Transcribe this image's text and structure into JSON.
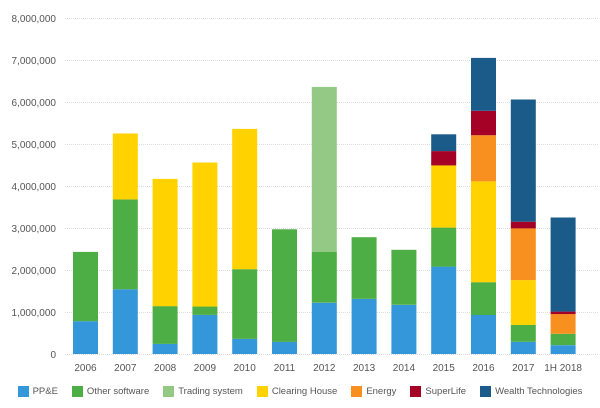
{
  "chart_data": {
    "type": "bar",
    "stacked": true,
    "title": "",
    "xlabel": "",
    "ylabel": "",
    "ylim": [
      0,
      8000000
    ],
    "yticks": [
      "0",
      "1,000,000",
      "2,000,000",
      "3,000,000",
      "4,000,000",
      "5,000,000",
      "6,000,000",
      "7,000,000",
      "8,000,000"
    ],
    "ytick_values": [
      0,
      1000000,
      2000000,
      3000000,
      4000000,
      5000000,
      6000000,
      7000000,
      8000000
    ],
    "grid": true,
    "legend_position": "bottom",
    "categories": [
      "2006",
      "2007",
      "2008",
      "2009",
      "2010",
      "2011",
      "2012",
      "2013",
      "2014",
      "2015",
      "2016",
      "2017",
      "1H 2018"
    ],
    "series": [
      {
        "name": "PP&E",
        "color": "#3497d9",
        "values": [
          780000,
          1540000,
          240000,
          930000,
          360000,
          290000,
          1220000,
          1310000,
          1170000,
          2080000,
          930000,
          290000,
          210000
        ]
      },
      {
        "name": "Other software",
        "color": "#4cae45",
        "values": [
          1650000,
          2140000,
          900000,
          200000,
          1660000,
          2680000,
          1210000,
          1470000,
          1310000,
          930000,
          780000,
          400000,
          270000
        ]
      },
      {
        "name": "Trading system",
        "color": "#94c985",
        "values": [
          0,
          0,
          0,
          0,
          0,
          0,
          3930000,
          0,
          0,
          0,
          0,
          0,
          0
        ]
      },
      {
        "name": "Clearing House",
        "color": "#ffd200",
        "values": [
          0,
          1570000,
          3030000,
          3430000,
          3340000,
          0,
          0,
          0,
          0,
          1480000,
          2400000,
          1070000,
          0
        ]
      },
      {
        "name": "Energy",
        "color": "#f7901e",
        "values": [
          0,
          0,
          0,
          0,
          0,
          0,
          0,
          0,
          0,
          0,
          1100000,
          1230000,
          470000
        ]
      },
      {
        "name": "SuperLife",
        "color": "#a50026",
        "values": [
          0,
          0,
          0,
          0,
          0,
          0,
          0,
          0,
          0,
          340000,
          580000,
          160000,
          60000
        ]
      },
      {
        "name": "Wealth Technologies",
        "color": "#1b5b8a",
        "values": [
          0,
          0,
          0,
          0,
          0,
          0,
          0,
          0,
          0,
          400000,
          1260000,
          2910000,
          2240000
        ]
      }
    ]
  }
}
